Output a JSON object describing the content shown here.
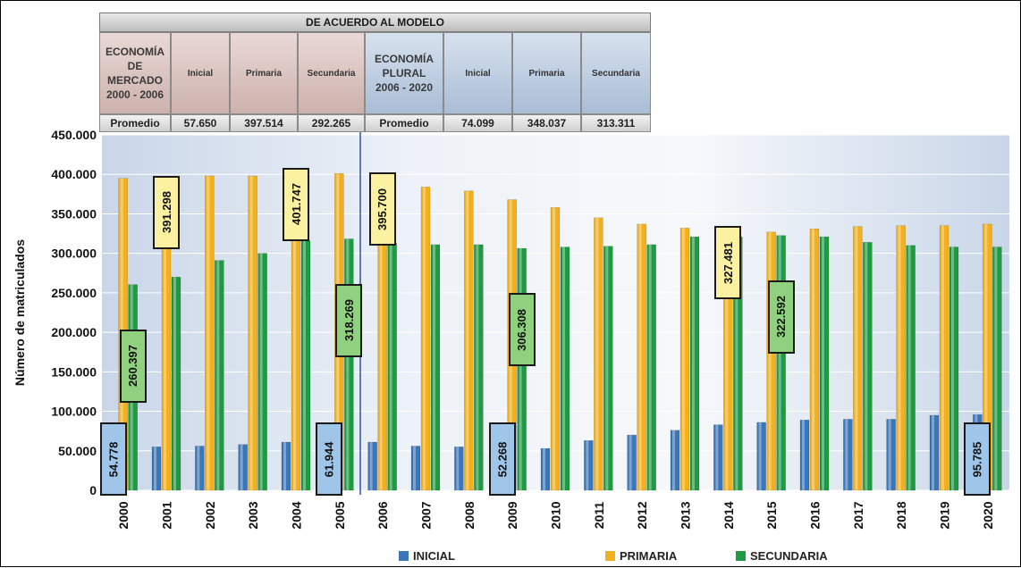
{
  "header_table": {
    "title": "DE ACUERDO AL MODELO",
    "market": {
      "label": "ECONOMÍA\nDE\nMERCADO\n2000 - 2006",
      "columns": [
        "Inicial",
        "Primaria",
        "Secundaria"
      ],
      "average_label": "Promedio",
      "averages": [
        "57.650",
        "397.514",
        "292.265"
      ]
    },
    "plural": {
      "label": "ECONOMÍA\nPLURAL\n2006 - 2020",
      "columns": [
        "Inicial",
        "Primaria",
        "Secundaria"
      ],
      "average_label": "Promedio",
      "averages": [
        "74.099",
        "348.037",
        "313.311"
      ]
    },
    "colors": {
      "market_bg": "#d9c1bd",
      "plural_bg": "#b9c9de"
    }
  },
  "chart_data": {
    "type": "bar",
    "ylabel": "Número de matriculados",
    "xlabel": "",
    "ylim": [
      0,
      450000
    ],
    "yticks": [
      "0",
      "50.000",
      "100.000",
      "150.000",
      "200.000",
      "250.000",
      "300.000",
      "350.000",
      "400.000",
      "450.000"
    ],
    "grid": true,
    "legend_position": "bottom",
    "divider_after_category": "2005",
    "categories": [
      "2000",
      "2001",
      "2002",
      "2003",
      "2004",
      "2005",
      "2006",
      "2007",
      "2008",
      "2009",
      "2010",
      "2011",
      "2012",
      "2013",
      "2014",
      "2015",
      "2016",
      "2017",
      "2018",
      "2019",
      "2020"
    ],
    "series": [
      {
        "name": "INICIAL",
        "color": "#3a76b8",
        "values": [
          54778,
          55000,
          56000,
          58000,
          61000,
          61944,
          61000,
          56000,
          55000,
          52268,
          53000,
          63000,
          70000,
          76000,
          83000,
          86000,
          89000,
          90000,
          90000,
          95000,
          95785
        ]
      },
      {
        "name": "PRIMARIA",
        "color": "#f2b01e",
        "values": [
          395000,
          391298,
          398000,
          398000,
          401747,
          401000,
          395700,
          384000,
          379000,
          368000,
          358000,
          345000,
          337000,
          332000,
          327481,
          327000,
          331000,
          334000,
          335000,
          335000,
          337000
        ]
      },
      {
        "name": "SECUNDARIA",
        "color": "#1f9a43",
        "values": [
          260397,
          270000,
          291000,
          300000,
          316000,
          318269,
          313000,
          311000,
          311000,
          306308,
          308000,
          309000,
          311000,
          321000,
          321000,
          322592,
          321000,
          314000,
          310000,
          308000,
          308000
        ]
      }
    ],
    "annotations": [
      {
        "category": "2000",
        "series": "INICIAL",
        "text": "54.778"
      },
      {
        "category": "2000",
        "series": "SECUNDARIA",
        "text": "260.397"
      },
      {
        "category": "2001",
        "series": "PRIMARIA",
        "text": "391.298"
      },
      {
        "category": "2004",
        "series": "PRIMARIA",
        "text": "401.747"
      },
      {
        "category": "2005",
        "series": "INICIAL",
        "text": "61.944"
      },
      {
        "category": "2005",
        "series": "SECUNDARIA",
        "text": "318.269"
      },
      {
        "category": "2006",
        "series": "PRIMARIA",
        "text": "395.700"
      },
      {
        "category": "2009",
        "series": "INICIAL",
        "text": "52.268"
      },
      {
        "category": "2009",
        "series": "SECUNDARIA",
        "text": "306.308"
      },
      {
        "category": "2014",
        "series": "PRIMARIA",
        "text": "327.481"
      },
      {
        "category": "2015",
        "series": "SECUNDARIA",
        "text": "322.592"
      },
      {
        "category": "2020",
        "series": "INICIAL",
        "text": "95.785"
      }
    ]
  }
}
